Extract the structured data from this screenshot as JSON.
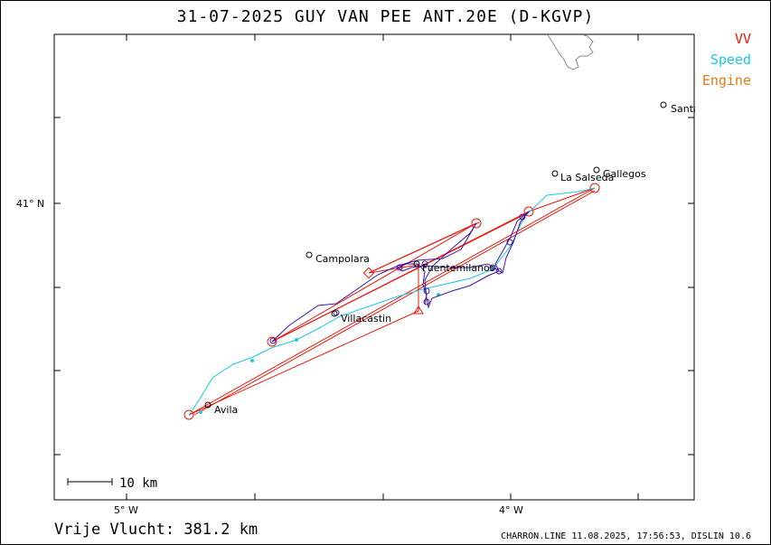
{
  "title": "31-07-2025   GUY VAN PEE   ANT.20E (D-KGVP)",
  "legend": {
    "items": [
      {
        "label": "VV",
        "color": "#e8190c"
      },
      {
        "label": "Speed",
        "color": "#19c8e6"
      },
      {
        "label": "Engine",
        "color": "#e67814"
      }
    ]
  },
  "axes": {
    "lat_label": "41° N",
    "lon_labels": [
      "5° W",
      "4° W"
    ]
  },
  "places": [
    {
      "name": "Santa"
    },
    {
      "name": "Gallegos"
    },
    {
      "name": "La Salseda"
    },
    {
      "name": "Campolara"
    },
    {
      "name": "Fuentemilanos"
    },
    {
      "name": "Villacastin"
    },
    {
      "name": "Avila"
    }
  ],
  "scale_bar": {
    "label": "10 km"
  },
  "distance": "Vrije Vlucht:  381.2 km",
  "credits": "CHARRON.LINE 11.08.2025, 17:56:53, DISLIN 10.6",
  "colors": {
    "task_line": "#e8190c",
    "speed_track": "#19c8e6",
    "climb_track": "#3c14a0",
    "coast": "#888888"
  }
}
